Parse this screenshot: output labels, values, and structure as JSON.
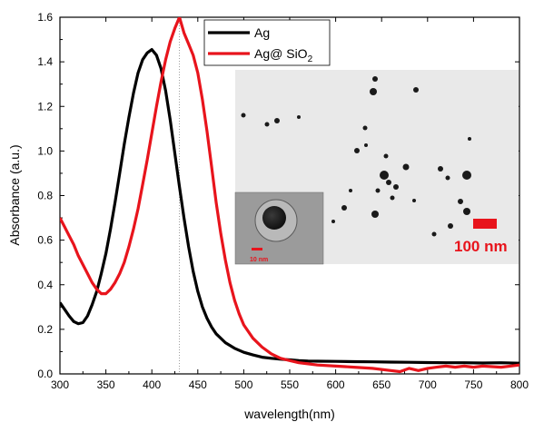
{
  "chart_data": {
    "type": "line",
    "xlabel": "wavelength(nm)",
    "ylabel": "Absorbance (a.u.)",
    "xlim": [
      300,
      800
    ],
    "ylim": [
      0.0,
      1.6
    ],
    "xticks": [
      "300",
      "350",
      "400",
      "450",
      "500",
      "550",
      "600",
      "650",
      "700",
      "750",
      "800"
    ],
    "yticks": [
      "0.0",
      "0.2",
      "0.4",
      "0.6",
      "0.8",
      "1.0",
      "1.2",
      "1.4",
      "1.6"
    ],
    "reference_line_x": 430,
    "legend_position": "top-center",
    "series": [
      {
        "name": "Ag",
        "color": "#000000",
        "points": [
          [
            300,
            0.32
          ],
          [
            305,
            0.29
          ],
          [
            310,
            0.26
          ],
          [
            315,
            0.235
          ],
          [
            320,
            0.225
          ],
          [
            325,
            0.23
          ],
          [
            330,
            0.26
          ],
          [
            335,
            0.31
          ],
          [
            340,
            0.37
          ],
          [
            345,
            0.45
          ],
          [
            350,
            0.54
          ],
          [
            355,
            0.65
          ],
          [
            360,
            0.77
          ],
          [
            365,
            0.9
          ],
          [
            370,
            1.03
          ],
          [
            375,
            1.15
          ],
          [
            380,
            1.26
          ],
          [
            385,
            1.35
          ],
          [
            390,
            1.41
          ],
          [
            395,
            1.44
          ],
          [
            400,
            1.455
          ],
          [
            405,
            1.43
          ],
          [
            410,
            1.37
          ],
          [
            415,
            1.27
          ],
          [
            420,
            1.14
          ],
          [
            425,
            0.99
          ],
          [
            430,
            0.84
          ],
          [
            435,
            0.7
          ],
          [
            440,
            0.57
          ],
          [
            445,
            0.46
          ],
          [
            450,
            0.37
          ],
          [
            455,
            0.3
          ],
          [
            460,
            0.25
          ],
          [
            465,
            0.21
          ],
          [
            470,
            0.18
          ],
          [
            480,
            0.14
          ],
          [
            490,
            0.115
          ],
          [
            500,
            0.097
          ],
          [
            510,
            0.085
          ],
          [
            520,
            0.075
          ],
          [
            530,
            0.07
          ],
          [
            540,
            0.066
          ],
          [
            550,
            0.063
          ],
          [
            560,
            0.06
          ],
          [
            570,
            0.058
          ],
          [
            580,
            0.057
          ],
          [
            600,
            0.056
          ],
          [
            620,
            0.055
          ],
          [
            640,
            0.054
          ],
          [
            660,
            0.053
          ],
          [
            680,
            0.052
          ],
          [
            700,
            0.051
          ],
          [
            720,
            0.05
          ],
          [
            740,
            0.05
          ],
          [
            760,
            0.049
          ],
          [
            780,
            0.05
          ],
          [
            800,
            0.048
          ]
        ]
      },
      {
        "name": "Ag@ SiO2",
        "name_main": "Ag@ SiO",
        "name_sub": "2",
        "color": "#e8141c",
        "points": [
          [
            300,
            0.7
          ],
          [
            305,
            0.66
          ],
          [
            310,
            0.62
          ],
          [
            315,
            0.58
          ],
          [
            320,
            0.53
          ],
          [
            325,
            0.49
          ],
          [
            330,
            0.45
          ],
          [
            335,
            0.41
          ],
          [
            340,
            0.38
          ],
          [
            345,
            0.36
          ],
          [
            350,
            0.36
          ],
          [
            355,
            0.38
          ],
          [
            360,
            0.41
          ],
          [
            365,
            0.45
          ],
          [
            370,
            0.5
          ],
          [
            375,
            0.57
          ],
          [
            380,
            0.65
          ],
          [
            385,
            0.74
          ],
          [
            390,
            0.85
          ],
          [
            395,
            0.96
          ],
          [
            400,
            1.08
          ],
          [
            405,
            1.2
          ],
          [
            410,
            1.31
          ],
          [
            415,
            1.41
          ],
          [
            420,
            1.49
          ],
          [
            425,
            1.55
          ],
          [
            430,
            1.6
          ],
          [
            435,
            1.53
          ],
          [
            440,
            1.48
          ],
          [
            445,
            1.43
          ],
          [
            450,
            1.35
          ],
          [
            455,
            1.23
          ],
          [
            460,
            1.09
          ],
          [
            465,
            0.93
          ],
          [
            470,
            0.77
          ],
          [
            475,
            0.63
          ],
          [
            480,
            0.51
          ],
          [
            485,
            0.41
          ],
          [
            490,
            0.33
          ],
          [
            495,
            0.27
          ],
          [
            500,
            0.22
          ],
          [
            510,
            0.16
          ],
          [
            520,
            0.12
          ],
          [
            530,
            0.09
          ],
          [
            540,
            0.07
          ],
          [
            550,
            0.06
          ],
          [
            560,
            0.05
          ],
          [
            570,
            0.045
          ],
          [
            580,
            0.04
          ],
          [
            600,
            0.035
          ],
          [
            620,
            0.03
          ],
          [
            640,
            0.025
          ],
          [
            660,
            0.015
          ],
          [
            670,
            0.01
          ],
          [
            680,
            0.025
          ],
          [
            690,
            0.015
          ],
          [
            700,
            0.025
          ],
          [
            710,
            0.03
          ],
          [
            720,
            0.035
          ],
          [
            730,
            0.03
          ],
          [
            740,
            0.035
          ],
          [
            750,
            0.03
          ],
          [
            760,
            0.035
          ],
          [
            780,
            0.03
          ],
          [
            800,
            0.04
          ]
        ]
      }
    ]
  },
  "inset": {
    "main_scale_label": "100 nm",
    "small_scale_label": "10 nm",
    "scale_color": "#e8141c"
  }
}
